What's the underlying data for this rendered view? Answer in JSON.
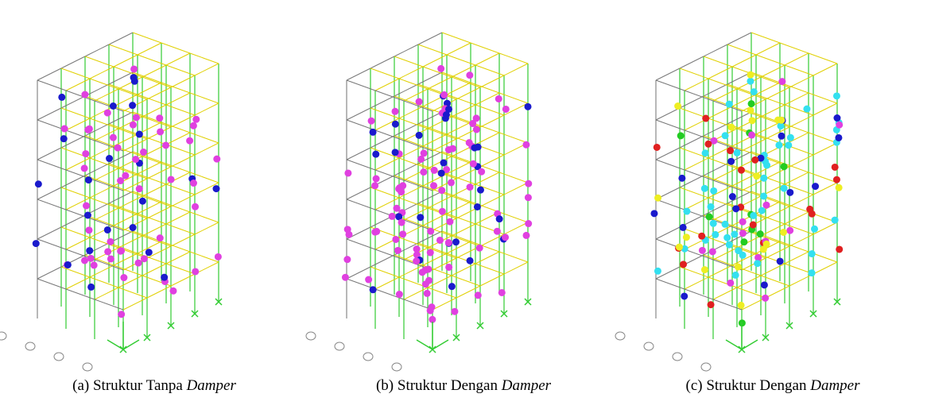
{
  "panels": [
    {
      "caption": "(a) Struktur Tanpa",
      "emphasis": "Damper"
    },
    {
      "caption": "(b) Struktur Dengan",
      "emphasis": "Damper"
    },
    {
      "caption": "(c) Struktur Dengan",
      "emphasis": "Damper"
    }
  ]
}
